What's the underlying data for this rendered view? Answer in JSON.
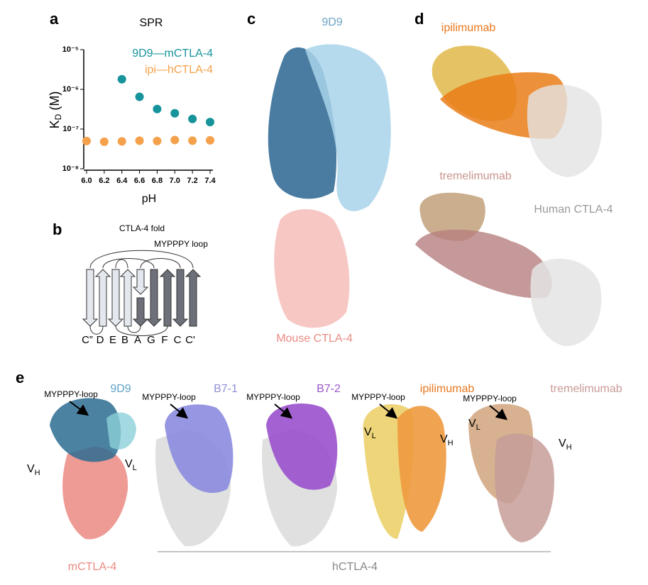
{
  "chart_data": {
    "type": "scatter",
    "title": "SPR",
    "x_label": "pH",
    "y_label": {
      "text": "K",
      "subscript": "D",
      "suffix": " (M)"
    },
    "log_y": true,
    "legend": "top-right",
    "xlim": [
      6.0,
      7.4
    ],
    "xticks": [
      {
        "value": 6.0,
        "label": "6.0"
      },
      {
        "value": 6.2,
        "label": "6.2"
      },
      {
        "value": 6.4,
        "label": "6.4"
      },
      {
        "value": 6.6,
        "label": "6.6"
      },
      {
        "value": 6.8,
        "label": "6.8"
      },
      {
        "value": 7.0,
        "label": "7.0"
      },
      {
        "value": 7.2,
        "label": "7.2"
      },
      {
        "value": 7.4,
        "label": "7.4"
      }
    ],
    "ylim": [
      1e-08,
      1e-05
    ],
    "yticks": [
      {
        "value": 1e-08,
        "label": "10⁻⁸"
      },
      {
        "value": 1e-07,
        "label": "10⁻⁷"
      },
      {
        "value": 1e-06,
        "label": "10⁻⁶"
      },
      {
        "value": 1e-05,
        "label": "10⁻⁵"
      }
    ],
    "series": [
      {
        "name": "9D9—mCTLA-4",
        "color": "#16939b",
        "x": [
          6.4,
          6.6,
          6.8,
          7.0,
          7.2,
          7.4
        ],
        "values": [
          1.8e-06,
          6.5e-07,
          3.2e-07,
          2.5e-07,
          1.8e-07,
          1.5e-07
        ]
      },
      {
        "name": "ipi—hCTLA-4",
        "color": "#f5a04a",
        "x": [
          6.0,
          6.2,
          6.4,
          6.6,
          6.8,
          7.0,
          7.2,
          7.4
        ],
        "values": [
          5e-08,
          4.8e-08,
          4.9e-08,
          5.1e-08,
          5e-08,
          5.3e-08,
          5.1e-08,
          5.2e-08
        ]
      }
    ]
  },
  "panel_letters": [
    "a",
    "b",
    "c",
    "d",
    "e"
  ],
  "panel_b": {
    "title": "CTLA-4 fold",
    "loop": "MYPPPY loop",
    "strands": [
      "C”",
      "D",
      "E",
      "B",
      "A",
      "G",
      "F",
      "C",
      "C'"
    ]
  },
  "panel_c": {
    "antibody": "9D9",
    "target": "Mouse CTLA-4"
  },
  "panel_d": {
    "antibody_1": "ipilimumab",
    "antibody_2": "tremelimumab",
    "target": "Human CTLA-4"
  },
  "panel_e": {
    "binders": [
      {
        "name": "9D9",
        "loop": "MYPPPY-loop"
      },
      {
        "name": "B7-1",
        "loop": "MYPPPY-loop"
      },
      {
        "name": "B7-2",
        "loop": "MYPPPY-loop"
      },
      {
        "name": "ipilimumab",
        "loop": "MYPPPY-loop"
      },
      {
        "name": "tremelimumab",
        "loop": "MYPPPY-loop"
      }
    ],
    "chains": [
      [
        "V",
        "H"
      ],
      [
        "V",
        "L"
      ],
      [
        "V",
        "L"
      ],
      [
        "V",
        "H"
      ],
      [
        "V",
        "L"
      ],
      [
        "V",
        "H"
      ]
    ],
    "mouse_target": "mCTLA-4",
    "human_target": "hCTLA-4"
  }
}
